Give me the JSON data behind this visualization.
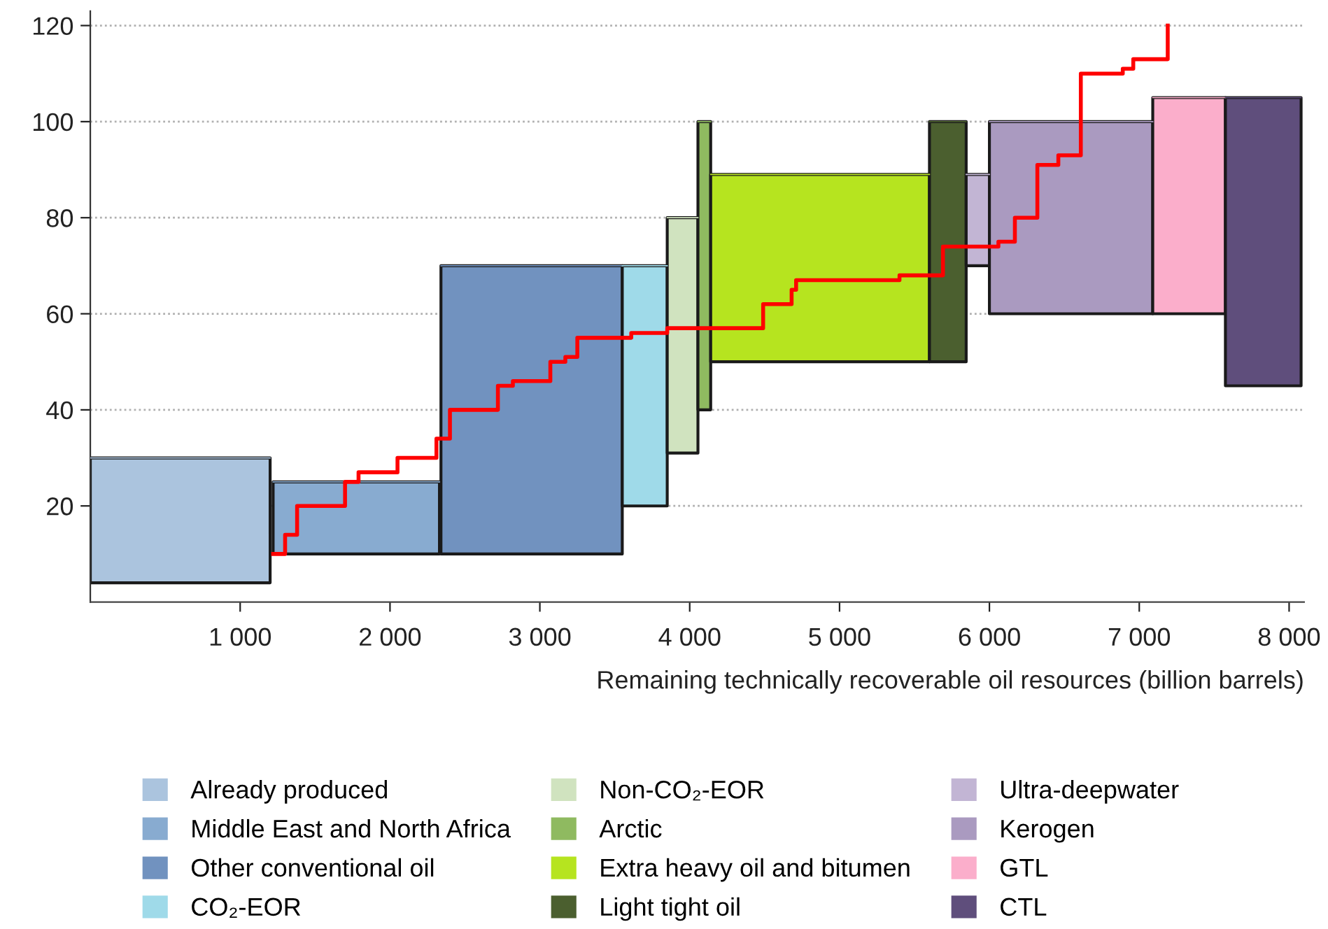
{
  "chart_data": {
    "type": "line",
    "xlabel": "Remaining technically recoverable oil resources (billion barrels)",
    "xlim": [
      0,
      8100
    ],
    "xticks": [
      {
        "value": 1000,
        "label": "1 000"
      },
      {
        "value": 2000,
        "label": "2 000"
      },
      {
        "value": 3000,
        "label": "3 000"
      },
      {
        "value": 4000,
        "label": "4 000"
      },
      {
        "value": 5000,
        "label": "5 000"
      },
      {
        "value": 6000,
        "label": "6 000"
      },
      {
        "value": 7000,
        "label": "7 000"
      },
      {
        "value": 8000,
        "label": "8 000"
      }
    ],
    "ylim": [
      0,
      123
    ],
    "yticks": [
      20,
      40,
      60,
      80,
      100,
      120
    ],
    "grid": "y",
    "legend": "bottom",
    "series": [
      {
        "name": "Already produced",
        "color": "#abc4de",
        "x": [
          0,
          1200
        ],
        "values": [
          30,
          30
        ],
        "lower": [
          4,
          4
        ],
        "upper": [
          30,
          30
        ]
      },
      {
        "name": "Middle East and North Africa",
        "color": "#88abd0",
        "x": [
          1220,
          2330
        ],
        "values": [
          25,
          25
        ],
        "lower": [
          10,
          10
        ],
        "upper": [
          25,
          25
        ]
      },
      {
        "name": "Other conventional oil",
        "color": "#7192bf",
        "x": [
          2340,
          3550
        ],
        "values": [
          70,
          70
        ],
        "lower": [
          10,
          10
        ],
        "upper": [
          70,
          70
        ]
      },
      {
        "name": "CO₂-EOR",
        "color": "#9fdae9",
        "x": [
          3550,
          3850
        ],
        "values": [
          70,
          70
        ],
        "lower": [
          20,
          20
        ],
        "upper": [
          70,
          70
        ]
      },
      {
        "name": "Non-CO₂-EOR",
        "color": "#d0e3bf",
        "x": [
          3850,
          4055
        ],
        "values": [
          80,
          80
        ],
        "lower": [
          31,
          31
        ],
        "upper": [
          80,
          80
        ]
      },
      {
        "name": "Arctic",
        "color": "#8fba60",
        "x": [
          4055,
          4140
        ],
        "values": [
          100,
          100
        ],
        "lower": [
          40,
          40
        ],
        "upper": [
          100,
          100
        ]
      },
      {
        "name": "Extra heavy oil and bitumen",
        "color": "#b6e41f",
        "x": [
          4140,
          5600
        ],
        "values": [
          89,
          89
        ],
        "lower": [
          50,
          50
        ],
        "upper": [
          89,
          89
        ]
      },
      {
        "name": "Light tight oil",
        "color": "#4b5f2f",
        "x": [
          5600,
          5845
        ],
        "values": [
          100,
          100
        ],
        "lower": [
          50,
          50
        ],
        "upper": [
          100,
          100
        ]
      },
      {
        "name": "Ultra-deepwater",
        "color": "#c2b5d4",
        "x": [
          5845,
          6000
        ],
        "values": [
          89,
          89
        ],
        "lower": [
          70,
          70
        ],
        "upper": [
          89,
          89
        ]
      },
      {
        "name": "Kerogen",
        "color": "#aa9ac0",
        "x": [
          6000,
          7090
        ],
        "values": [
          100,
          100
        ],
        "lower": [
          60,
          60
        ],
        "upper": [
          100,
          100
        ]
      },
      {
        "name": "GTL",
        "color": "#fbaecb",
        "x": [
          7090,
          7575
        ],
        "values": [
          105,
          105
        ],
        "lower": [
          60,
          60
        ],
        "upper": [
          105,
          105
        ]
      },
      {
        "name": "CTL",
        "color": "#5f4e7c",
        "x": [
          7575,
          8080
        ],
        "values": [
          105,
          105
        ],
        "lower": [
          45,
          45
        ],
        "upper": [
          105,
          105
        ]
      },
      {
        "type": "step",
        "color": "#ff0000",
        "x": [
          1220,
          1300,
          1380,
          1700,
          1790,
          2050,
          2310,
          2400,
          2720,
          2820,
          3070,
          3170,
          3250,
          3610,
          3850,
          4490,
          4680,
          4710,
          5400,
          5690,
          6060,
          6170,
          6320,
          6460,
          6610,
          6890,
          6960,
          7190
        ],
        "values": [
          10,
          14,
          20,
          25,
          27,
          30,
          34,
          40,
          45,
          46,
          50,
          51,
          55,
          56,
          57,
          62,
          65,
          67,
          68,
          74,
          75,
          80,
          91,
          93,
          110,
          111,
          113,
          120
        ]
      }
    ]
  }
}
